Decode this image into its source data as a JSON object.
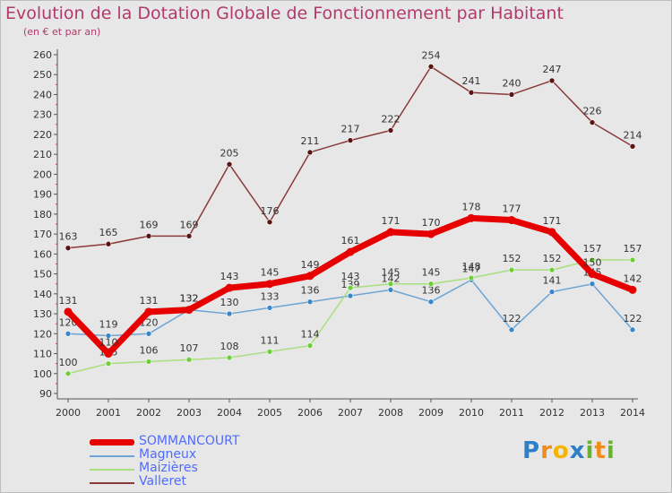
{
  "title": "Evolution de la Dotation Globale de Fonctionnement par Habitant",
  "subtitle": "(en € et par an)",
  "logo": [
    "P",
    "r",
    "o",
    "x",
    "i",
    "t",
    "i"
  ],
  "colors": {
    "background": "#e7e7e7",
    "title": "#b23a6a",
    "legend_text": "#4f6cff",
    "axis_text": "#333333"
  },
  "chart_data": {
    "type": "line",
    "x": [
      "2000",
      "2001",
      "2002",
      "2003",
      "2004",
      "2005",
      "2006",
      "2007",
      "2008",
      "2009",
      "2010",
      "2011",
      "2012",
      "2013",
      "2014"
    ],
    "ylim": [
      90,
      260
    ],
    "yticks": [
      90,
      100,
      110,
      120,
      130,
      140,
      150,
      160,
      170,
      180,
      190,
      200,
      210,
      220,
      230,
      240,
      250,
      260
    ],
    "grid": false,
    "legend_position": "bottom-left",
    "series": [
      {
        "name": "SOMMANCOURT",
        "color": "#e60000",
        "marker_color": "#e60000",
        "width": 7,
        "values": [
          131,
          110,
          131,
          132,
          143,
          145,
          149,
          161,
          171,
          170,
          178,
          177,
          171,
          150,
          142
        ],
        "labels": [
          "131",
          "110",
          "131",
          "132",
          "143",
          "145",
          "149",
          "161",
          "171",
          "170",
          "178",
          "177",
          "171",
          "150",
          "142"
        ]
      },
      {
        "name": "Magneux",
        "color": "#6ea4d4",
        "marker_color": "#3a86c8",
        "width": 1.5,
        "values": [
          120,
          119,
          120,
          132,
          130,
          133,
          136,
          139,
          142,
          136,
          147,
          122,
          141,
          145,
          122
        ],
        "labels": [
          "120",
          "119",
          "120",
          "132",
          "130",
          "133",
          "136",
          "139",
          "142",
          "136",
          "147",
          "122",
          "141",
          "145",
          "122"
        ]
      },
      {
        "name": "Maizières",
        "color": "#a8e07f",
        "marker_color": "#6fcf3a",
        "width": 1.5,
        "values": [
          100,
          105,
          106,
          107,
          108,
          111,
          114,
          143,
          145,
          145,
          148,
          152,
          152,
          157,
          157
        ],
        "labels": [
          "100",
          "105",
          "106",
          "107",
          "108",
          "111",
          "114",
          "143",
          "145",
          "145",
          "148",
          "152",
          "152",
          "157",
          "157"
        ]
      },
      {
        "name": "Valleret",
        "color": "#8a3a3a",
        "marker_color": "#5a1414",
        "width": 1.5,
        "values": [
          163,
          165,
          169,
          169,
          205,
          176,
          211,
          217,
          222,
          254,
          241,
          240,
          247,
          226,
          214
        ],
        "labels": [
          "163",
          "165",
          "169",
          "169",
          "205",
          "176",
          "211",
          "217",
          "222",
          "254",
          "241",
          "240",
          "247",
          "226",
          "214"
        ]
      }
    ]
  }
}
